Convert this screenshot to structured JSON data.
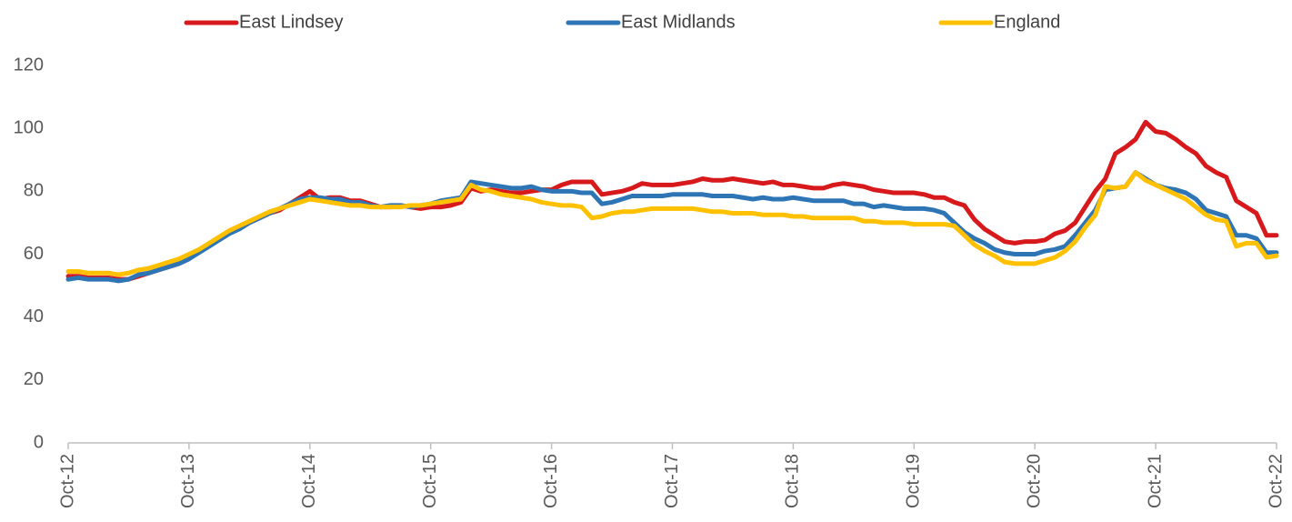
{
  "chart_data": {
    "type": "line",
    "categories": [
      "Oct-12",
      null,
      null,
      null,
      null,
      null,
      null,
      null,
      null,
      null,
      null,
      null,
      "Oct-13",
      null,
      null,
      null,
      null,
      null,
      null,
      null,
      null,
      null,
      null,
      null,
      "Oct-14",
      null,
      null,
      null,
      null,
      null,
      null,
      null,
      null,
      null,
      null,
      null,
      "Oct-15",
      null,
      null,
      null,
      null,
      null,
      null,
      null,
      null,
      null,
      null,
      null,
      "Oct-16",
      null,
      null,
      null,
      null,
      null,
      null,
      null,
      null,
      null,
      null,
      null,
      "Oct-17",
      null,
      null,
      null,
      null,
      null,
      null,
      null,
      null,
      null,
      null,
      null,
      "Oct-18",
      null,
      null,
      null,
      null,
      null,
      null,
      null,
      null,
      null,
      null,
      null,
      "Oct-19",
      null,
      null,
      null,
      null,
      null,
      null,
      null,
      null,
      null,
      null,
      null,
      "Oct-20",
      null,
      null,
      null,
      null,
      null,
      null,
      null,
      null,
      null,
      null,
      null,
      "Oct-21",
      null,
      null,
      null,
      null,
      null,
      null,
      null,
      null,
      null,
      null,
      null,
      "Oct-22"
    ],
    "series": [
      {
        "name": "East Lindsey",
        "color": "#d7191c",
        "values": [
          53,
          53,
          52.5,
          52.5,
          52.5,
          52,
          52,
          53,
          54,
          55,
          56,
          57,
          58.5,
          61,
          63,
          65,
          67,
          68.5,
          70,
          71.5,
          73,
          74,
          76,
          78,
          80,
          77.5,
          78,
          78,
          77,
          77,
          76,
          75,
          75,
          75.5,
          75,
          74.5,
          75,
          75,
          75.5,
          76.5,
          81,
          80,
          80.5,
          80,
          79.5,
          79.5,
          80,
          80.5,
          80.5,
          82,
          83,
          83,
          83,
          79,
          79.5,
          80,
          81,
          82.5,
          82,
          82,
          82,
          82.5,
          83,
          84,
          83.5,
          83.5,
          84,
          83.5,
          83,
          82.5,
          83,
          82,
          82,
          81.5,
          81,
          81,
          82,
          82.5,
          82,
          81.5,
          80.5,
          80,
          79.5,
          79.5,
          79.5,
          79,
          78,
          78,
          76.5,
          75.5,
          71,
          68,
          66,
          64,
          63.5,
          64,
          64,
          64.5,
          66.5,
          67.5,
          70,
          75,
          80,
          84,
          92,
          94,
          96.5,
          102,
          99,
          98.5,
          96.5,
          94,
          92,
          88,
          86,
          84.5,
          77,
          75,
          73,
          66,
          66
        ]
      },
      {
        "name": "East Midlands",
        "color": "#2e75b6",
        "values": [
          52,
          52.5,
          52,
          52,
          52,
          51.5,
          52,
          53.5,
          54,
          55,
          56,
          57,
          58.5,
          60.5,
          62.5,
          64.5,
          66.5,
          68,
          70,
          71.5,
          73,
          74.5,
          76,
          77.5,
          78,
          78,
          77.5,
          77.5,
          76.5,
          76.5,
          75.5,
          75,
          75.5,
          75.5,
          75,
          75.5,
          76,
          77,
          77.5,
          78,
          83,
          82.5,
          82,
          81.5,
          81,
          81,
          81.5,
          80.5,
          80,
          80,
          80,
          79.5,
          79.5,
          76,
          76.5,
          77.5,
          78.5,
          78.5,
          78.5,
          78.5,
          79,
          79,
          79,
          79,
          78.5,
          78.5,
          78.5,
          78,
          77.5,
          78,
          77.5,
          77.5,
          78,
          77.5,
          77,
          77,
          77,
          77,
          76,
          76,
          75,
          75.5,
          75,
          74.5,
          74.5,
          74.5,
          74,
          73,
          70,
          67,
          65,
          63.5,
          61.5,
          60.5,
          60,
          60,
          60,
          61,
          61.5,
          62.5,
          66,
          70,
          74,
          80.5,
          81,
          81.5,
          86,
          84,
          82,
          81,
          80.5,
          79.5,
          77.5,
          74,
          73,
          72,
          66,
          66,
          65,
          60.5,
          60.5
        ]
      },
      {
        "name": "England",
        "color": "#ffc000",
        "values": [
          54.5,
          54.5,
          54,
          54,
          54,
          53.5,
          54,
          55,
          55.5,
          56.5,
          57.5,
          58.5,
          60,
          61.5,
          63.5,
          65.5,
          67.5,
          69,
          70.5,
          72,
          73.5,
          74.5,
          75.5,
          76.5,
          77.5,
          77,
          76.5,
          76,
          75.5,
          75.5,
          75,
          75,
          75,
          75,
          75.5,
          75.5,
          76,
          76.5,
          77,
          77.5,
          82,
          80.5,
          80,
          79,
          78.5,
          78,
          77.5,
          76.5,
          76,
          75.5,
          75.5,
          75,
          71.5,
          72,
          73,
          73.5,
          73.5,
          74,
          74.5,
          74.5,
          74.5,
          74.5,
          74.5,
          74,
          73.5,
          73.5,
          73,
          73,
          73,
          72.5,
          72.5,
          72.5,
          72,
          72,
          71.5,
          71.5,
          71.5,
          71.5,
          71.5,
          70.5,
          70.5,
          70,
          70,
          70,
          69.5,
          69.5,
          69.5,
          69.5,
          69,
          66,
          63,
          61,
          59.5,
          57.5,
          57,
          57,
          57,
          58,
          59,
          61,
          64,
          68.5,
          72.5,
          81.5,
          81,
          81.5,
          86,
          83.5,
          82,
          80.5,
          79,
          77.5,
          75,
          72.5,
          71,
          70.5,
          62.5,
          63.5,
          63.5,
          59,
          59.5
        ]
      }
    ],
    "ylim": [
      0,
      120
    ],
    "yticks": [
      0,
      20,
      40,
      60,
      80,
      100,
      120
    ],
    "grid": false,
    "legend": "top"
  }
}
